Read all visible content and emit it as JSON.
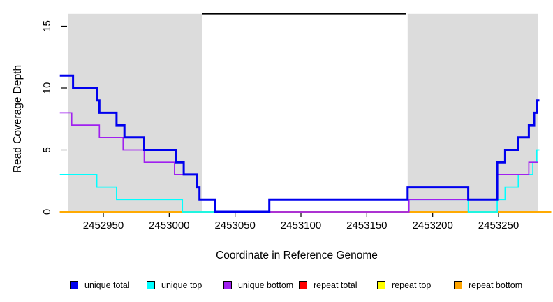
{
  "chart_data": {
    "type": "line",
    "subtype": "step-coverage-plot",
    "title": "",
    "xlabel": "Coordinate in Reference Genome",
    "ylabel": "Read Coverage Depth",
    "xlim": [
      2452917,
      2453292
    ],
    "ylim": [
      0,
      16
    ],
    "grid": false,
    "legend_position": "bottom",
    "x_ticks": [
      2452950,
      2453000,
      2453050,
      2453100,
      2453150,
      2453200,
      2453250
    ],
    "x_tick_labels": [
      "2452950",
      "2453000",
      "2453050",
      "2453100",
      "2453150",
      "2453200",
      "2453250"
    ],
    "y_ticks": [
      0,
      5,
      10,
      15
    ],
    "y_tick_labels": [
      "0",
      "5",
      "10",
      "15"
    ],
    "shade_color": "#DCDCDC",
    "shaded_regions": [
      {
        "from": 2452923,
        "to": 2453025
      },
      {
        "from": 2453181,
        "to": 2453280
      }
    ],
    "gap_overline": {
      "from": 2453025,
      "to": 2453180,
      "depth": 16,
      "color": "#000000"
    },
    "series": [
      {
        "name": "unique total",
        "color": "#0000EE",
        "linewidth": 3,
        "steps": [
          [
            2452917,
            11
          ],
          [
            2452927,
            10
          ],
          [
            2452945,
            9
          ],
          [
            2452947,
            8
          ],
          [
            2452960,
            7
          ],
          [
            2452966,
            6
          ],
          [
            2452981,
            5
          ],
          [
            2453005,
            4
          ],
          [
            2453011,
            3
          ],
          [
            2453021,
            2
          ],
          [
            2453023,
            1
          ],
          [
            2453035,
            0
          ],
          [
            2453076,
            1
          ],
          [
            2453181,
            2
          ],
          [
            2453227,
            1
          ],
          [
            2453249,
            4
          ],
          [
            2453255,
            5
          ],
          [
            2453265,
            6
          ],
          [
            2453273,
            7
          ],
          [
            2453277,
            8
          ],
          [
            2453279,
            9
          ],
          [
            2453281,
            9
          ]
        ]
      },
      {
        "name": "unique top",
        "color": "#00FFFF",
        "linewidth": 1.7,
        "steps": [
          [
            2452917,
            3
          ],
          [
            2452945,
            2
          ],
          [
            2452960,
            1
          ],
          [
            2453010,
            0
          ],
          [
            2453076,
            1
          ],
          [
            2453227,
            0
          ],
          [
            2453249,
            1
          ],
          [
            2453255,
            2
          ],
          [
            2453265,
            3
          ],
          [
            2453276,
            4
          ],
          [
            2453279,
            5
          ],
          [
            2453281,
            5
          ]
        ]
      },
      {
        "name": "unique bottom",
        "color": "#A020F0",
        "linewidth": 1.7,
        "steps": [
          [
            2452917,
            8
          ],
          [
            2452926,
            7
          ],
          [
            2452947,
            6
          ],
          [
            2452965,
            5
          ],
          [
            2452981,
            4
          ],
          [
            2453004,
            3
          ],
          [
            2453021,
            2
          ],
          [
            2453023,
            1
          ],
          [
            2453035,
            0
          ],
          [
            2453182,
            1
          ],
          [
            2453249,
            3
          ],
          [
            2453273,
            4
          ],
          [
            2453280,
            4
          ]
        ]
      },
      {
        "name": "repeat total",
        "color": "#FF0000",
        "linewidth": 1.7,
        "steps": [
          [
            2452917,
            0
          ],
          [
            2453290,
            0
          ]
        ]
      },
      {
        "name": "repeat top",
        "color": "#FFFF00",
        "linewidth": 1.7,
        "steps": [
          [
            2452917,
            0
          ],
          [
            2453290,
            0
          ]
        ]
      },
      {
        "name": "repeat bottom",
        "color": "#FFA500",
        "linewidth": 1.7,
        "steps": [
          [
            2452917,
            0
          ],
          [
            2453290,
            0
          ]
        ]
      }
    ]
  },
  "legend": {
    "items": [
      {
        "label": "unique total",
        "color": "#0000EE"
      },
      {
        "label": "unique top",
        "color": "#00FFFF"
      },
      {
        "label": "unique bottom",
        "color": "#A020F0"
      },
      {
        "label": "repeat total",
        "color": "#FF0000"
      },
      {
        "label": "repeat top",
        "color": "#FFFF00"
      },
      {
        "label": "repeat bottom",
        "color": "#FFA500"
      }
    ]
  }
}
